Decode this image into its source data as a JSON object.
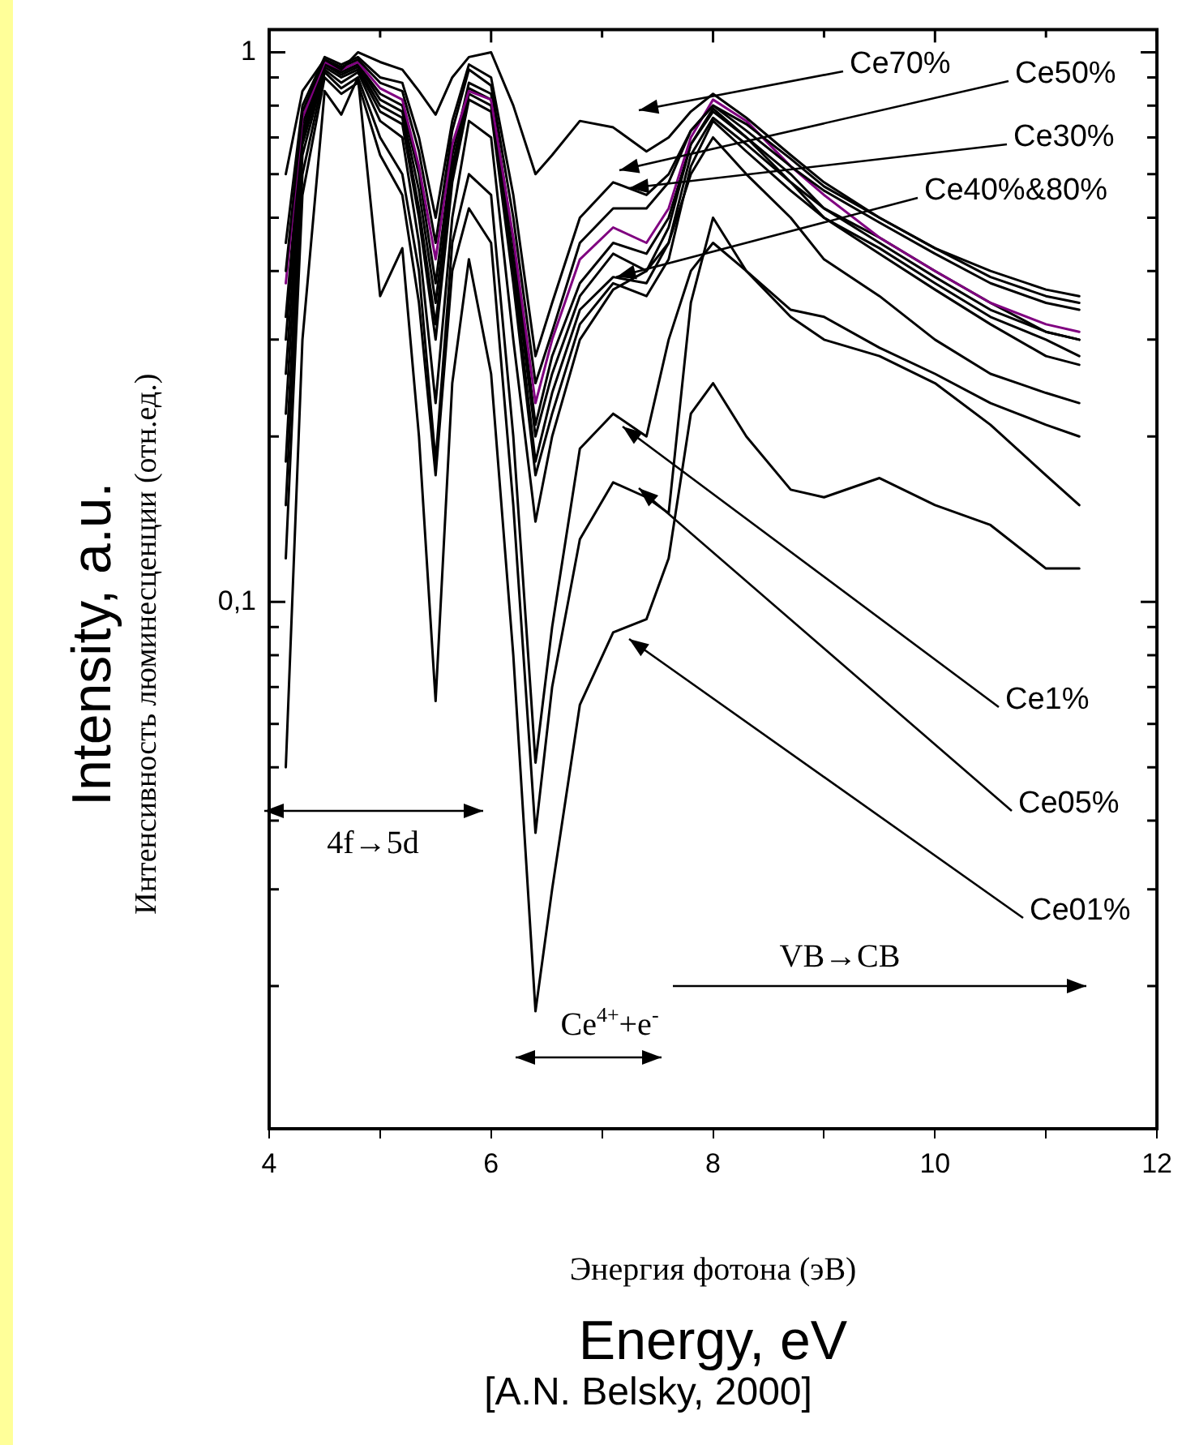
{
  "chart_data": {
    "type": "line",
    "xlabel": "Энергия фотона (эВ)\nEnergy, eV",
    "ylabel": "Intensity, a.u.\nИнтенсивность люминесценции (отн.ед.)",
    "x": [
      4.15,
      4.3,
      4.5,
      4.65,
      4.8,
      5.0,
      5.2,
      5.35,
      5.5,
      5.65,
      5.8,
      6.0,
      6.2,
      6.4,
      6.55,
      6.8,
      7.1,
      7.4,
      7.6,
      7.8,
      8.0,
      8.3,
      8.7,
      9.0,
      9.5,
      10.0,
      10.5,
      11.0,
      11.3
    ],
    "series": [
      {
        "color": "#000000",
        "values": [
          0.6,
          0.85,
          0.97,
          0.93,
          1.0,
          0.96,
          0.93,
          0.85,
          0.77,
          0.9,
          0.98,
          1.0,
          0.8,
          0.6,
          0.65,
          0.75,
          0.73,
          0.66,
          0.7,
          0.78,
          0.84,
          0.76,
          0.65,
          0.58,
          0.5,
          0.44,
          0.4,
          0.37,
          0.36
        ]
      },
      {
        "color": "#000000",
        "values": [
          0.45,
          0.8,
          0.98,
          0.95,
          0.98,
          0.9,
          0.88,
          0.7,
          0.5,
          0.75,
          0.95,
          0.9,
          0.55,
          0.28,
          0.35,
          0.5,
          0.58,
          0.55,
          0.6,
          0.72,
          0.8,
          0.74,
          0.64,
          0.57,
          0.5,
          0.44,
          0.39,
          0.36,
          0.35
        ]
      },
      {
        "color": "#000000",
        "values": [
          0.4,
          0.78,
          0.97,
          0.94,
          0.97,
          0.88,
          0.85,
          0.66,
          0.45,
          0.72,
          0.93,
          0.87,
          0.5,
          0.25,
          0.31,
          0.45,
          0.52,
          0.52,
          0.58,
          0.72,
          0.8,
          0.72,
          0.62,
          0.56,
          0.49,
          0.43,
          0.38,
          0.35,
          0.34
        ]
      },
      {
        "color": "#800080",
        "values": [
          0.38,
          0.76,
          0.96,
          0.93,
          0.96,
          0.86,
          0.82,
          0.62,
          0.42,
          0.68,
          0.85,
          0.82,
          0.46,
          0.23,
          0.3,
          0.42,
          0.48,
          0.45,
          0.52,
          0.7,
          0.82,
          0.75,
          0.62,
          0.55,
          0.46,
          0.4,
          0.35,
          0.32,
          0.31
        ]
      },
      {
        "color": "#000000",
        "values": [
          0.33,
          0.74,
          0.96,
          0.92,
          0.95,
          0.84,
          0.8,
          0.6,
          0.38,
          0.65,
          0.88,
          0.84,
          0.45,
          0.21,
          0.28,
          0.38,
          0.45,
          0.43,
          0.5,
          0.68,
          0.78,
          0.7,
          0.6,
          0.52,
          0.45,
          0.39,
          0.34,
          0.31,
          0.3
        ]
      },
      {
        "color": "#000000",
        "values": [
          0.3,
          0.72,
          0.95,
          0.92,
          0.95,
          0.82,
          0.78,
          0.56,
          0.35,
          0.62,
          0.86,
          0.82,
          0.42,
          0.2,
          0.26,
          0.36,
          0.43,
          0.4,
          0.48,
          0.68,
          0.79,
          0.7,
          0.58,
          0.5,
          0.44,
          0.38,
          0.33,
          0.3,
          0.28
        ]
      },
      {
        "color": "#000000",
        "values": [
          0.26,
          0.7,
          0.95,
          0.91,
          0.94,
          0.8,
          0.76,
          0.52,
          0.32,
          0.6,
          0.84,
          0.8,
          0.4,
          0.18,
          0.24,
          0.34,
          0.39,
          0.38,
          0.45,
          0.65,
          0.76,
          0.68,
          0.58,
          0.52,
          0.46,
          0.4,
          0.35,
          0.31,
          0.3
        ]
      },
      {
        "color": "#000000",
        "values": [
          0.22,
          0.68,
          0.94,
          0.9,
          0.93,
          0.78,
          0.74,
          0.5,
          0.3,
          0.58,
          0.82,
          0.78,
          0.38,
          0.17,
          0.22,
          0.32,
          0.38,
          0.36,
          0.42,
          0.62,
          0.75,
          0.66,
          0.56,
          0.5,
          0.43,
          0.37,
          0.32,
          0.28,
          0.27
        ]
      },
      {
        "color": "#000000",
        "values": [
          0.18,
          0.65,
          0.93,
          0.88,
          0.92,
          0.75,
          0.7,
          0.45,
          0.23,
          0.5,
          0.75,
          0.7,
          0.3,
          0.14,
          0.2,
          0.3,
          0.37,
          0.4,
          0.45,
          0.6,
          0.7,
          0.6,
          0.5,
          0.42,
          0.36,
          0.3,
          0.26,
          0.24,
          0.23
        ]
      },
      {
        "color": "#000000",
        "values": [
          0.15,
          0.6,
          0.92,
          0.86,
          0.9,
          0.7,
          0.6,
          0.4,
          0.18,
          0.45,
          0.6,
          0.55,
          0.2,
          0.051,
          0.09,
          0.19,
          0.22,
          0.2,
          0.3,
          0.4,
          0.45,
          0.4,
          0.34,
          0.33,
          0.29,
          0.26,
          0.23,
          0.21,
          0.2
        ]
      },
      {
        "color": "#000000",
        "values": [
          0.12,
          0.55,
          0.9,
          0.84,
          0.88,
          0.65,
          0.55,
          0.35,
          0.17,
          0.4,
          0.52,
          0.45,
          0.15,
          0.038,
          0.07,
          0.13,
          0.165,
          0.155,
          0.145,
          0.35,
          0.5,
          0.4,
          0.33,
          0.3,
          0.28,
          0.25,
          0.21,
          0.17,
          0.15
        ]
      },
      {
        "color": "#000000",
        "values": [
          0.05,
          0.3,
          0.85,
          0.77,
          0.9,
          0.36,
          0.44,
          0.2,
          0.066,
          0.25,
          0.42,
          0.26,
          0.08,
          0.018,
          0.03,
          0.065,
          0.088,
          0.093,
          0.12,
          0.22,
          0.25,
          0.2,
          0.16,
          0.155,
          0.168,
          0.15,
          0.138,
          0.115,
          0.115
        ]
      }
    ],
    "xlim": [
      4,
      12
    ],
    "xticks": [
      4,
      {
        "value": 5,
        "label": null
      },
      6,
      {
        "value": 7,
        "label": null
      },
      8,
      {
        "value": 9,
        "label": null
      },
      10,
      {
        "value": 11,
        "label": null
      },
      12
    ],
    "ylim": [
      0.011,
      1.1
    ],
    "yticks": [
      {
        "value": 0.02,
        "label": null
      },
      {
        "value": 0.03,
        "label": null
      },
      {
        "value": 0.04,
        "label": null
      },
      {
        "value": 0.05,
        "label": null
      },
      {
        "value": 0.06,
        "label": null
      },
      {
        "value": 0.07,
        "label": null
      },
      {
        "value": 0.08,
        "label": null
      },
      {
        "value": 0.09,
        "label": null
      },
      {
        "value": 0.1,
        "label": "0,1"
      },
      {
        "value": 0.2,
        "label": null
      },
      {
        "value": 0.3,
        "label": null
      },
      {
        "value": 0.4,
        "label": null
      },
      {
        "value": 0.5,
        "label": null
      },
      {
        "value": 0.6,
        "label": null
      },
      {
        "value": 0.7,
        "label": null
      },
      {
        "value": 0.8,
        "label": null
      },
      {
        "value": 0.9,
        "label": null
      },
      1
    ],
    "log": "y",
    "grid": false,
    "legend": false,
    "marker": "none",
    "line_style": "solid",
    "annotations": [
      "Ce70%",
      "Ce50%",
      "Ce30%",
      {
        "text": "Ce40%&80%",
        "x": 7.1,
        "y": 0.39
      },
      "Ce1%",
      "Ce05%",
      "Ce01%",
      "4f→5d",
      "Ce$^{4+}$+e$^{-}$",
      "VB→CB",
      "[A.N. Belsky, 2000]"
    ]
  }
}
